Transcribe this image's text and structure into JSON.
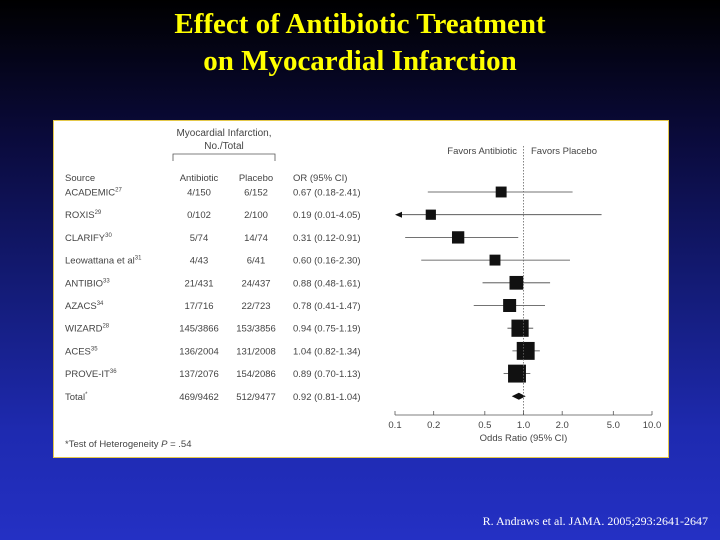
{
  "slide": {
    "title_line1": "Effect of Antibiotic Treatment",
    "title_line2": "on Myocardial Infarction",
    "citation": "R. Andraws et al. JAMA. 2005;293:2641-2647",
    "title_color": "#ffff00"
  },
  "chart_data": {
    "type": "forest",
    "group_header_line1": "Myocardial Infarction,",
    "group_header_line2": "No./Total",
    "columns": {
      "source": "Source",
      "antibiotic": "Antibiotic",
      "placebo": "Placebo",
      "or": "OR (95% CI)"
    },
    "favors_left": "Favors Antibiotic",
    "favors_right": "Favors Placebo",
    "xlabel": "Odds Ratio (95% CI)",
    "x_scale": "log",
    "xlim": [
      0.1,
      10.0
    ],
    "ticks": [
      {
        "value": 0.1,
        "label": "0.1"
      },
      {
        "value": 0.2,
        "label": "0.2"
      },
      {
        "value": 0.5,
        "label": "0.5"
      },
      {
        "value": 1.0,
        "label": "1.0"
      },
      {
        "value": 2.0,
        "label": "2.0"
      },
      {
        "value": 5.0,
        "label": "5.0"
      },
      {
        "value": 10.0,
        "label": "10.0"
      }
    ],
    "null_line": 1.0,
    "footnote_prefix": "*Test of Heterogeneity ",
    "footnote_p": "P",
    "footnote_suffix": " = .54",
    "studies": [
      {
        "source": "ACADEMIC",
        "ref": "27",
        "antibiotic": "4/150",
        "placebo": "6/152",
        "or_text": "0.67 (0.18-2.41)",
        "or": 0.67,
        "lo": 0.18,
        "hi": 2.41,
        "weight": 0.35
      },
      {
        "source": "ROXIS",
        "ref": "29",
        "antibiotic": "0/102",
        "placebo": "2/100",
        "or_text": "0.19 (0.01-4.05)",
        "or": 0.19,
        "lo": 0.01,
        "hi": 4.05,
        "weight": 0.3
      },
      {
        "source": "CLARIFY",
        "ref": "30",
        "antibiotic": "5/74",
        "placebo": "14/74",
        "or_text": "0.31 (0.12-0.91)",
        "or": 0.31,
        "lo": 0.12,
        "hi": 0.91,
        "weight": 0.45
      },
      {
        "source": "Leowattana et al",
        "ref": "31",
        "antibiotic": "4/43",
        "placebo": "6/41",
        "or_text": "0.60 (0.16-2.30)",
        "or": 0.6,
        "lo": 0.16,
        "hi": 2.3,
        "weight": 0.35
      },
      {
        "source": "ANTIBIO",
        "ref": "33",
        "antibiotic": "21/431",
        "placebo": "24/437",
        "or_text": "0.88 (0.48-1.61)",
        "or": 0.88,
        "lo": 0.48,
        "hi": 1.61,
        "weight": 0.55
      },
      {
        "source": "AZACS",
        "ref": "34",
        "antibiotic": "17/716",
        "placebo": "22/723",
        "or_text": "0.78 (0.41-1.47)",
        "or": 0.78,
        "lo": 0.41,
        "hi": 1.47,
        "weight": 0.5
      },
      {
        "source": "WIZARD",
        "ref": "28",
        "antibiotic": "145/3866",
        "placebo": "153/3856",
        "or_text": "0.94 (0.75-1.19)",
        "or": 0.94,
        "lo": 0.75,
        "hi": 1.19,
        "weight": 0.8
      },
      {
        "source": "ACES",
        "ref": "35",
        "antibiotic": "136/2004",
        "placebo": "131/2008",
        "or_text": "1.04 (0.82-1.34)",
        "or": 1.04,
        "lo": 0.82,
        "hi": 1.34,
        "weight": 0.85
      },
      {
        "source": "PROVE-IT",
        "ref": "36",
        "antibiotic": "137/2076",
        "placebo": "154/2086",
        "or_text": "0.89 (0.70-1.13)",
        "or": 0.89,
        "lo": 0.7,
        "hi": 1.13,
        "weight": 0.85
      }
    ],
    "total": {
      "source": "Total",
      "ref": "*",
      "antibiotic": "469/9462",
      "placebo": "512/9477",
      "or_text": "0.92 (0.81-1.04)",
      "or": 0.92,
      "lo": 0.81,
      "hi": 1.04
    }
  }
}
